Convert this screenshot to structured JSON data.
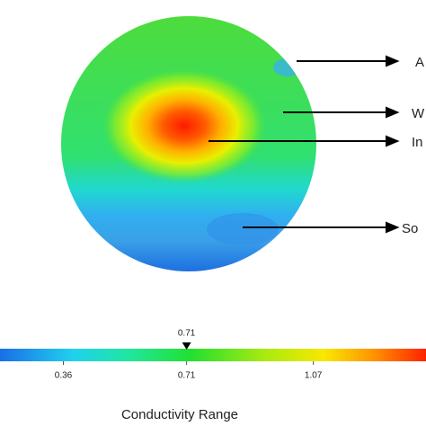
{
  "annotations": [
    "A",
    "W",
    "In",
    "So"
  ],
  "colorbar": {
    "label": "Conductivity Range",
    "lim": [
      0.18,
      1.39
    ],
    "ticks": [
      0.36,
      0.71,
      1.07
    ],
    "marker": 0.71
  }
}
